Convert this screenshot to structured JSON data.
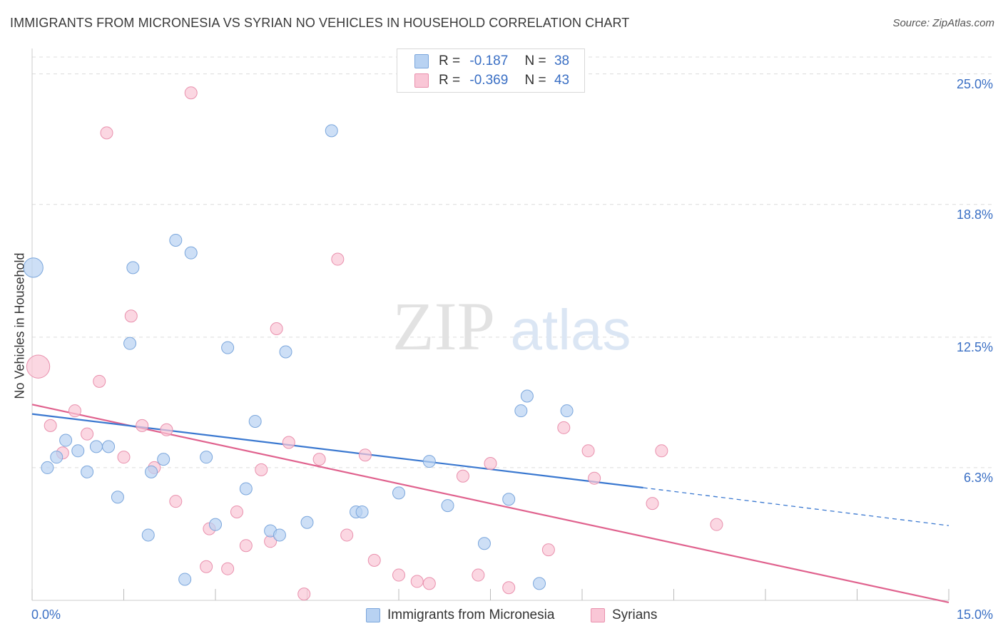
{
  "header": {
    "title": "IMMIGRANTS FROM MICRONESIA VS SYRIAN NO VEHICLES IN HOUSEHOLD CORRELATION CHART",
    "source": "Source: ZipAtlas.com"
  },
  "watermark": {
    "zip": "ZIP",
    "atlas": "atlas"
  },
  "legend_top": [
    {
      "r_label": "R =",
      "r_value": "-0.187",
      "n_label": "N =",
      "n_value": "38",
      "color": "#a9c8f0",
      "border": "#7aa6dc"
    },
    {
      "r_label": "R =",
      "r_value": "-0.369",
      "n_label": "N =",
      "n_value": "43",
      "color": "#f7bcd0",
      "border": "#e88aa8"
    }
  ],
  "colors": {
    "blue_fill": "#b8d2f2",
    "blue_stroke": "#7aa6dc",
    "blue_line": "#3a78d0",
    "pink_fill": "#f9c6d6",
    "pink_stroke": "#e990ad",
    "pink_line": "#e0628e",
    "grid": "#dcdcdc",
    "tick_text": "#3a6fc4"
  },
  "chart_data": {
    "type": "scatter",
    "title": "IMMIGRANTS FROM MICRONESIA VS SYRIAN NO VEHICLES IN HOUSEHOLD CORRELATION CHART",
    "xlabel": "",
    "ylabel": "No Vehicles in Household",
    "xlim": [
      0,
      15
    ],
    "ylim": [
      0,
      25.8
    ],
    "x_tick_labels": [
      "0.0%",
      "15.0%"
    ],
    "y_ticks": [
      6.3,
      12.5,
      18.8,
      25.0
    ],
    "y_tick_labels": [
      "6.3%",
      "12.5%",
      "18.8%",
      "25.0%"
    ],
    "grid": "horizontal dashed",
    "legend_position": "bottom",
    "series": [
      {
        "name": "Immigrants from Micronesia",
        "points": [
          [
            0.02,
            15.8,
            1.6
          ],
          [
            0.25,
            6.3,
            1
          ],
          [
            0.4,
            6.8,
            1
          ],
          [
            0.55,
            7.6,
            1
          ],
          [
            0.75,
            7.1,
            1
          ],
          [
            0.9,
            6.1,
            1
          ],
          [
            1.05,
            7.3,
            1
          ],
          [
            1.25,
            7.3,
            1
          ],
          [
            1.4,
            4.9,
            1
          ],
          [
            1.6,
            12.2,
            1
          ],
          [
            1.65,
            15.8,
            1
          ],
          [
            1.9,
            3.1,
            1
          ],
          [
            1.95,
            6.1,
            1
          ],
          [
            2.15,
            6.7,
            1
          ],
          [
            2.35,
            17.1,
            1
          ],
          [
            2.5,
            1.0,
            1
          ],
          [
            2.6,
            16.5,
            1
          ],
          [
            2.85,
            6.8,
            1
          ],
          [
            3.0,
            3.6,
            1
          ],
          [
            3.2,
            12.0,
            1
          ],
          [
            3.5,
            5.3,
            1
          ],
          [
            3.65,
            8.5,
            1
          ],
          [
            3.9,
            3.3,
            1
          ],
          [
            4.05,
            3.1,
            1
          ],
          [
            4.15,
            11.8,
            1
          ],
          [
            4.5,
            3.7,
            1
          ],
          [
            4.9,
            22.3,
            1
          ],
          [
            5.3,
            4.2,
            1
          ],
          [
            5.4,
            4.2,
            1
          ],
          [
            6.0,
            5.1,
            1
          ],
          [
            6.5,
            6.6,
            1
          ],
          [
            6.8,
            4.5,
            1
          ],
          [
            7.4,
            2.7,
            1
          ],
          [
            7.8,
            4.8,
            1
          ],
          [
            8.0,
            9.0,
            1
          ],
          [
            8.1,
            9.7,
            1
          ],
          [
            8.3,
            0.8,
            1
          ],
          [
            8.75,
            9.0,
            1
          ]
        ],
        "trend": {
          "x": [
            0,
            10.0
          ],
          "y": [
            8.85,
            5.35
          ]
        },
        "trend_dashed": {
          "x": [
            10.0,
            15.0
          ],
          "y": [
            5.35,
            3.55
          ]
        }
      },
      {
        "name": "Syrians",
        "points": [
          [
            0.1,
            11.1,
            1.9
          ],
          [
            0.3,
            8.3,
            1
          ],
          [
            0.5,
            7.0,
            1
          ],
          [
            0.7,
            9.0,
            1
          ],
          [
            0.9,
            7.9,
            1
          ],
          [
            1.1,
            10.4,
            1
          ],
          [
            1.22,
            22.2,
            1
          ],
          [
            1.5,
            6.8,
            1
          ],
          [
            1.62,
            13.5,
            1
          ],
          [
            1.8,
            8.3,
            1
          ],
          [
            2.0,
            6.3,
            1
          ],
          [
            2.2,
            8.1,
            1
          ],
          [
            2.35,
            4.7,
            1
          ],
          [
            2.6,
            24.1,
            1
          ],
          [
            2.85,
            1.6,
            1
          ],
          [
            2.9,
            3.4,
            1
          ],
          [
            3.2,
            1.5,
            1
          ],
          [
            3.35,
            4.2,
            1
          ],
          [
            3.5,
            2.6,
            1
          ],
          [
            3.75,
            6.2,
            1
          ],
          [
            3.9,
            2.8,
            1
          ],
          [
            4.0,
            12.9,
            1
          ],
          [
            4.2,
            7.5,
            1
          ],
          [
            4.45,
            0.3,
            1
          ],
          [
            4.7,
            6.7,
            1
          ],
          [
            5.0,
            16.2,
            1
          ],
          [
            5.15,
            3.1,
            1
          ],
          [
            5.45,
            6.9,
            1
          ],
          [
            5.6,
            1.9,
            1
          ],
          [
            6.0,
            1.2,
            1
          ],
          [
            6.3,
            0.9,
            1
          ],
          [
            6.5,
            0.8,
            1
          ],
          [
            7.05,
            5.9,
            1
          ],
          [
            7.3,
            1.2,
            1
          ],
          [
            7.5,
            6.5,
            1
          ],
          [
            7.8,
            0.6,
            1
          ],
          [
            8.45,
            2.4,
            1
          ],
          [
            8.7,
            8.2,
            1
          ],
          [
            9.1,
            7.1,
            1
          ],
          [
            9.2,
            5.8,
            1
          ],
          [
            10.15,
            4.6,
            1
          ],
          [
            10.3,
            7.1,
            1
          ],
          [
            11.2,
            3.6,
            1
          ]
        ],
        "trend": {
          "x": [
            0,
            15.0
          ],
          "y": [
            9.3,
            -0.1
          ]
        }
      }
    ]
  },
  "legend_bottom": [
    {
      "label": "Immigrants from Micronesia"
    },
    {
      "label": "Syrians"
    }
  ]
}
